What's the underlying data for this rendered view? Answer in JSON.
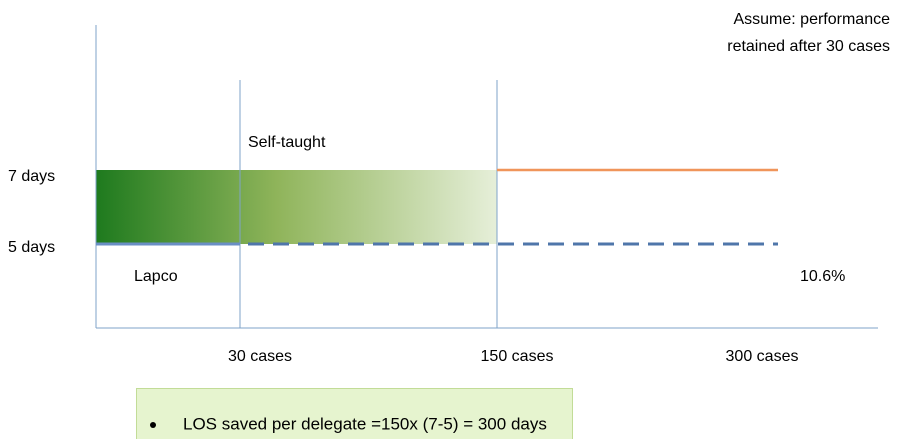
{
  "note": {
    "lines": [
      "Assume: performance",
      "retained after 30 cases"
    ]
  },
  "y_labels": [
    "7 days",
    "5 days"
  ],
  "x_labels": [
    "30 cases",
    "150 cases",
    "300 cases"
  ],
  "region_labels": {
    "upper": "Self-taught",
    "lower": "Lapco",
    "right": "10.6%"
  },
  "bullets": [
    "LOS saved per delegate =150x (7-5) = 300 days"
  ]
}
